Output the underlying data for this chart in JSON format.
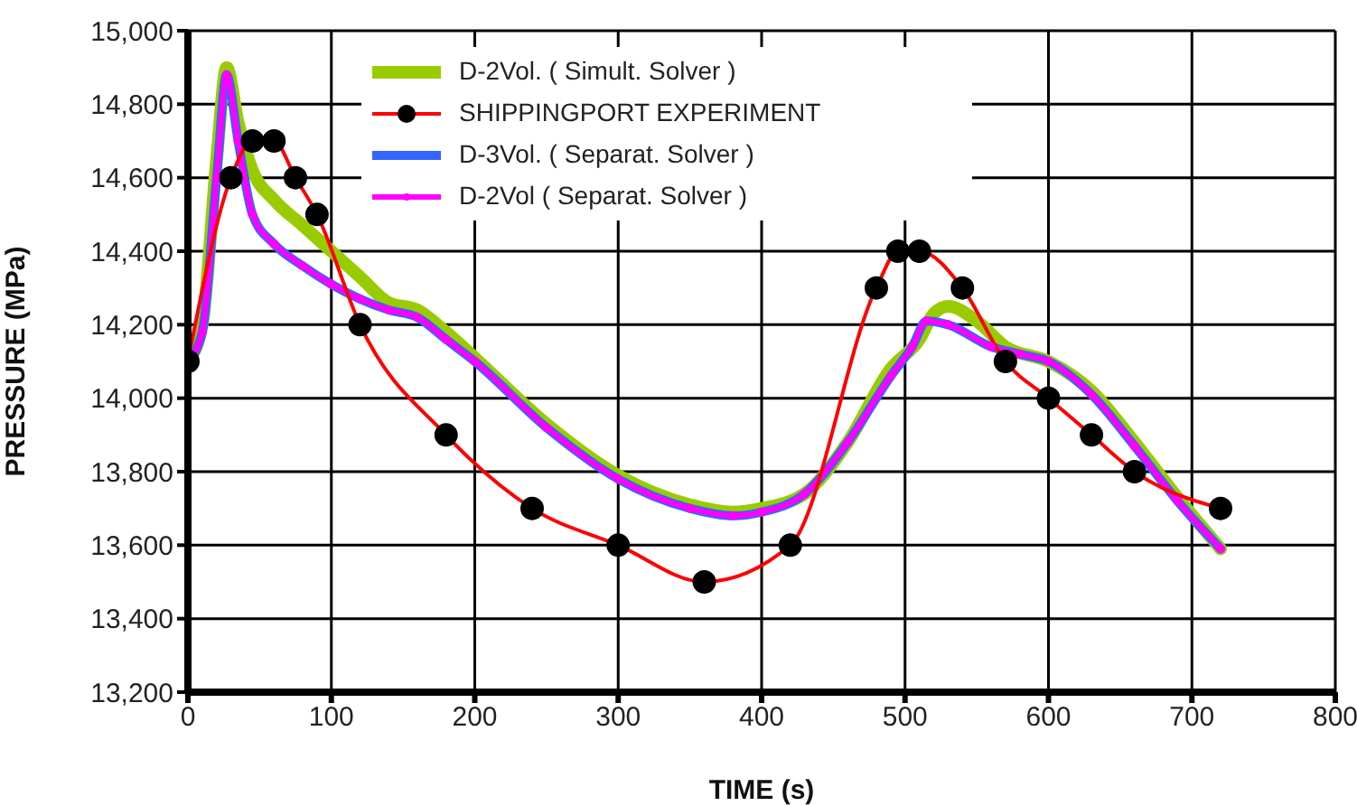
{
  "chart_data": {
    "type": "line",
    "xlabel": "TIME  (s)",
    "ylabel": "PRESSURE  (MPa)",
    "xlim": [
      0,
      800
    ],
    "xticks": [
      0,
      100,
      200,
      300,
      400,
      500,
      600,
      700,
      800
    ],
    "ylim": [
      13200,
      15000
    ],
    "yticks": [
      {
        "value": 13200,
        "label": "13,200"
      },
      {
        "value": 13400,
        "label": "13,400"
      },
      {
        "value": 13600,
        "label": "13,600"
      },
      {
        "value": 13800,
        "label": "13,800"
      },
      {
        "value": 14000,
        "label": "14,000"
      },
      {
        "value": 14200,
        "label": "14,200"
      },
      {
        "value": 14400,
        "label": "14,400"
      },
      {
        "value": 14600,
        "label": "14,600"
      },
      {
        "value": 14800,
        "label": "14,800"
      },
      {
        "value": 15000,
        "label": "15,000"
      }
    ],
    "grid": true,
    "legend": "top",
    "marker": "none",
    "line_style": "solid",
    "series": [
      {
        "name": "D-2Vol. ( Simult. Solver )",
        "color": "#99cc00",
        "x": [
          0,
          10,
          20,
          27,
          35,
          45,
          60,
          80,
          100,
          120,
          140,
          160,
          180,
          200,
          250,
          300,
          350,
          380,
          400,
          430,
          460,
          490,
          510,
          520,
          530,
          550,
          570,
          600,
          630,
          660,
          690,
          720
        ],
        "values": [
          14100,
          14200,
          14650,
          14900,
          14750,
          14620,
          14540,
          14470,
          14400,
          14330,
          14260,
          14240,
          14180,
          14110,
          13930,
          13790,
          13710,
          13690,
          13700,
          13740,
          13880,
          14080,
          14160,
          14230,
          14250,
          14210,
          14140,
          14100,
          14020,
          13880,
          13730,
          13590
        ]
      },
      {
        "name": "SHIPPINGPORT EXPERIMENT",
        "color": "#ff0000",
        "marker": "circle",
        "x": [
          0,
          30,
          45,
          60,
          75,
          90,
          120,
          180,
          240,
          300,
          360,
          420,
          480,
          495,
          510,
          540,
          570,
          600,
          630,
          660,
          720
        ],
        "values": [
          14100,
          14600,
          14700,
          14700,
          14600,
          14500,
          14200,
          13900,
          13700,
          13600,
          13500,
          13600,
          14300,
          14400,
          14400,
          14300,
          14100,
          14000,
          13900,
          13800,
          13700
        ]
      },
      {
        "name": "D-3Vol. ( Separat. Solver )",
        "color": "#3366ff",
        "x": [
          0,
          10,
          20,
          27,
          35,
          45,
          60,
          80,
          100,
          120,
          140,
          160,
          180,
          200,
          250,
          300,
          350,
          380,
          400,
          430,
          460,
          490,
          505,
          515,
          530,
          560,
          580,
          600,
          630,
          660,
          690,
          720
        ],
        "values": [
          14100,
          14180,
          14600,
          14880,
          14700,
          14500,
          14420,
          14360,
          14310,
          14270,
          14240,
          14220,
          14160,
          14100,
          13920,
          13780,
          13700,
          13680,
          13690,
          13740,
          13880,
          14060,
          14140,
          14210,
          14200,
          14140,
          14120,
          14100,
          14010,
          13870,
          13720,
          13590
        ]
      },
      {
        "name": "D-2Vol ( Separat. Solver )",
        "color": "#ff00ff",
        "marker": "circle",
        "x": [
          0,
          10,
          20,
          27,
          35,
          45,
          60,
          80,
          100,
          120,
          140,
          160,
          180,
          200,
          250,
          300,
          350,
          380,
          400,
          430,
          460,
          490,
          505,
          515,
          530,
          560,
          580,
          600,
          630,
          660,
          690,
          720
        ],
        "values": [
          14100,
          14180,
          14600,
          14880,
          14700,
          14500,
          14420,
          14360,
          14310,
          14270,
          14240,
          14220,
          14160,
          14100,
          13920,
          13780,
          13700,
          13680,
          13690,
          13740,
          13880,
          14060,
          14140,
          14210,
          14200,
          14140,
          14120,
          14100,
          14010,
          13870,
          13720,
          13590
        ]
      }
    ]
  }
}
